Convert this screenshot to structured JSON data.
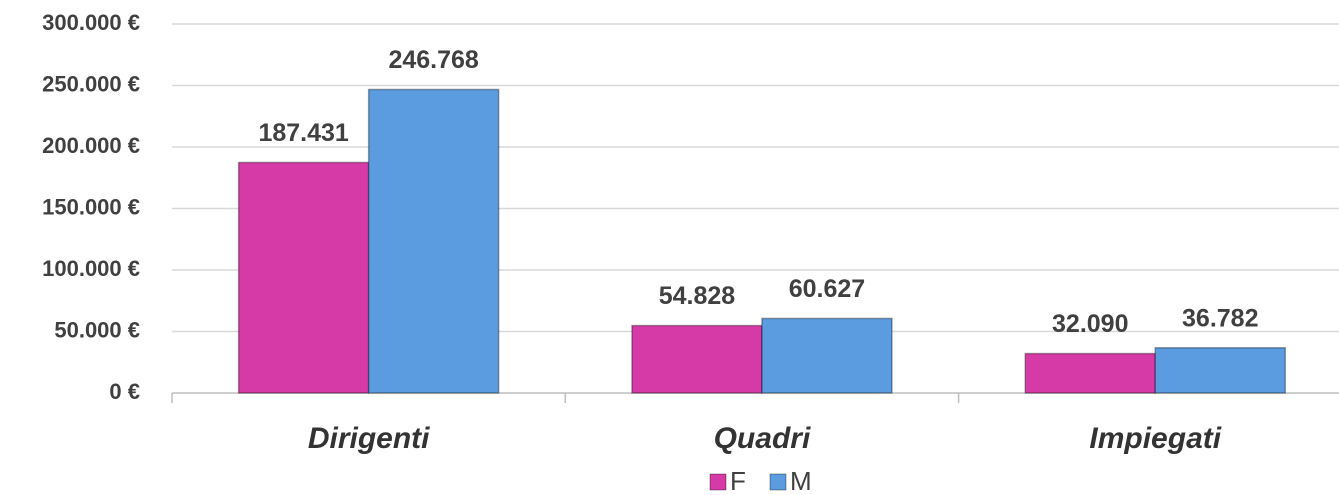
{
  "chart_data": {
    "type": "bar",
    "categories": [
      "Dirigenti",
      "Quadri",
      "Impiegati"
    ],
    "series": [
      {
        "name": "F",
        "color": "#d63aa6",
        "values": [
          187431,
          54828,
          32090
        ],
        "value_labels": [
          "187.431",
          "54.828",
          "32.090"
        ]
      },
      {
        "name": "M",
        "color": "#5b9be0",
        "values": [
          246768,
          60627,
          36782
        ],
        "value_labels": [
          "246.768",
          "60.627",
          "36.782"
        ]
      }
    ],
    "ylim": [
      0,
      300000
    ],
    "yticks": [
      {
        "value": 0,
        "label": "0 €"
      },
      {
        "value": 50000,
        "label": "50.000 €"
      },
      {
        "value": 100000,
        "label": "100.000 €"
      },
      {
        "value": 150000,
        "label": "150.000 €"
      },
      {
        "value": 200000,
        "label": "200.000 €"
      },
      {
        "value": 250000,
        "label": "250.000 €"
      },
      {
        "value": 300000,
        "label": "300.000 €"
      }
    ],
    "grid": true,
    "legend": "bottom"
  }
}
